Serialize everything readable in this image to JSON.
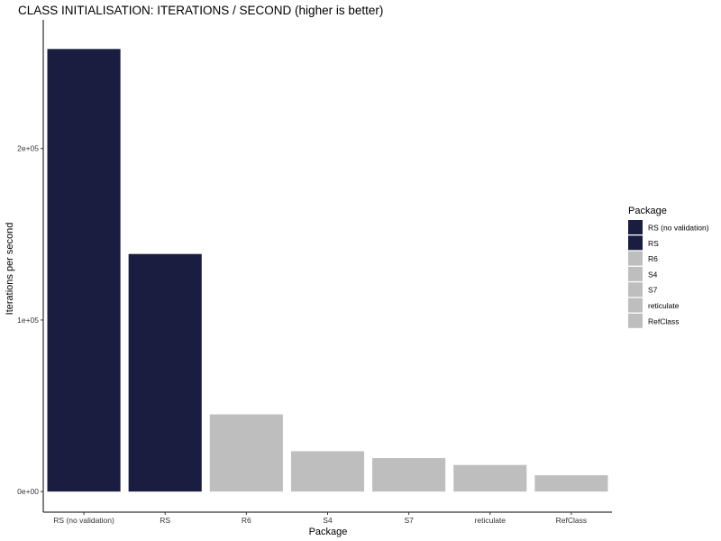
{
  "chart_data": {
    "type": "bar",
    "title": "CLASS INITIALISATION: ITERATIONS / SECOND (higher is better)",
    "xlabel": "Package",
    "ylabel": "Iterations per second",
    "categories": [
      "RS (no validation)",
      "RS",
      "R6",
      "S4",
      "S7",
      "reticulate",
      "RefClass"
    ],
    "values": [
      258000,
      138500,
      45000,
      23500,
      19500,
      15500,
      9500
    ],
    "fill_colors": [
      "#1a1d40",
      "#1a1d40",
      "#bebebe",
      "#bebebe",
      "#bebebe",
      "#bebebe",
      "#bebebe"
    ],
    "ylim": [
      -12000,
      275000
    ],
    "yticks": [
      0,
      100000,
      200000
    ],
    "ytick_labels": [
      "0e+00",
      "1e+05",
      "2e+05"
    ],
    "grid": false,
    "legend": {
      "title": "Package",
      "placement": "right",
      "entries": [
        {
          "label": "RS (no validation)",
          "color": "#1a1d40"
        },
        {
          "label": "RS",
          "color": "#1a1d40"
        },
        {
          "label": "R6",
          "color": "#bebebe"
        },
        {
          "label": "S4",
          "color": "#bebebe"
        },
        {
          "label": "S7",
          "color": "#bebebe"
        },
        {
          "label": "reticulate",
          "color": "#bebebe"
        },
        {
          "label": "RefClass",
          "color": "#bebebe"
        }
      ]
    }
  }
}
